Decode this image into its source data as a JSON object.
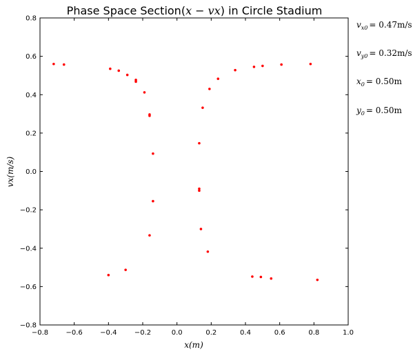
{
  "chart_data": {
    "type": "scatter",
    "title": "Phase Space Section(x − vx) in Circle Stadium",
    "title_parts": {
      "prefix": "Phase Space Section(",
      "math": "x − vx",
      "suffix": ") in Circle Stadium"
    },
    "xlabel": "x(m)",
    "ylabel": "vx(m/s)",
    "xlim": [
      -0.8,
      1.0
    ],
    "ylim": [
      -0.8,
      0.8
    ],
    "x_ticks": [
      -0.8,
      -0.6,
      -0.4,
      -0.2,
      0.0,
      0.2,
      0.4,
      0.6,
      0.8,
      1.0
    ],
    "x_tick_labels": [
      "−0.8",
      "−0.6",
      "−0.4",
      "−0.2",
      "0.0",
      "0.2",
      "0.4",
      "0.6",
      "0.8",
      "1.0"
    ],
    "y_ticks": [
      -0.8,
      -0.6,
      -0.4,
      -0.2,
      0.0,
      0.2,
      0.4,
      0.6,
      0.8
    ],
    "y_tick_labels": [
      "−0.8",
      "−0.6",
      "−0.4",
      "−0.2",
      "0.0",
      "0.2",
      "0.4",
      "0.6",
      "0.8"
    ],
    "grid": false,
    "marker_color": "#ff0000",
    "series": [
      {
        "points": [
          {
            "x": -0.72,
            "y": 0.56
          },
          {
            "x": -0.66,
            "y": 0.557
          },
          {
            "x": -0.39,
            "y": 0.535
          },
          {
            "x": -0.34,
            "y": 0.525
          },
          {
            "x": -0.29,
            "y": 0.503
          },
          {
            "x": -0.24,
            "y": 0.477
          },
          {
            "x": -0.24,
            "y": 0.468
          },
          {
            "x": -0.19,
            "y": 0.412
          },
          {
            "x": -0.16,
            "y": 0.297
          },
          {
            "x": -0.16,
            "y": 0.29
          },
          {
            "x": -0.14,
            "y": 0.093
          },
          {
            "x": -0.14,
            "y": -0.155
          },
          {
            "x": -0.16,
            "y": -0.333
          },
          {
            "x": -0.4,
            "y": -0.54
          },
          {
            "x": -0.3,
            "y": -0.513
          },
          {
            "x": 0.13,
            "y": 0.147
          },
          {
            "x": 0.15,
            "y": 0.332
          },
          {
            "x": 0.19,
            "y": 0.43
          },
          {
            "x": 0.24,
            "y": 0.483
          },
          {
            "x": 0.34,
            "y": 0.528
          },
          {
            "x": 0.45,
            "y": 0.545
          },
          {
            "x": 0.5,
            "y": 0.55
          },
          {
            "x": 0.61,
            "y": 0.557
          },
          {
            "x": 0.78,
            "y": 0.56
          },
          {
            "x": 0.13,
            "y": -0.09
          },
          {
            "x": 0.13,
            "y": -0.1
          },
          {
            "x": 0.14,
            "y": -0.3
          },
          {
            "x": 0.18,
            "y": -0.418
          },
          {
            "x": 0.44,
            "y": -0.548
          },
          {
            "x": 0.49,
            "y": -0.55
          },
          {
            "x": 0.55,
            "y": -0.558
          },
          {
            "x": 0.82,
            "y": -0.565
          }
        ]
      }
    ],
    "annotations": [
      {
        "name": "vx0",
        "text": "vx0 = 0.47m/s",
        "symbol": "v",
        "sub": "x0",
        "value": "= 0.47m/s"
      },
      {
        "name": "vy0",
        "text": "vy0 = 0.32m/s",
        "symbol": "v",
        "sub": "y0",
        "value": "= 0.32m/s"
      },
      {
        "name": "x0",
        "text": "x0 = 0.50m",
        "symbol": "x",
        "sub": "0",
        "value": "= 0.50m"
      },
      {
        "name": "y0",
        "text": "y0 = 0.50m",
        "symbol": "y",
        "sub": "0",
        "value": "= 0.50m"
      }
    ]
  }
}
